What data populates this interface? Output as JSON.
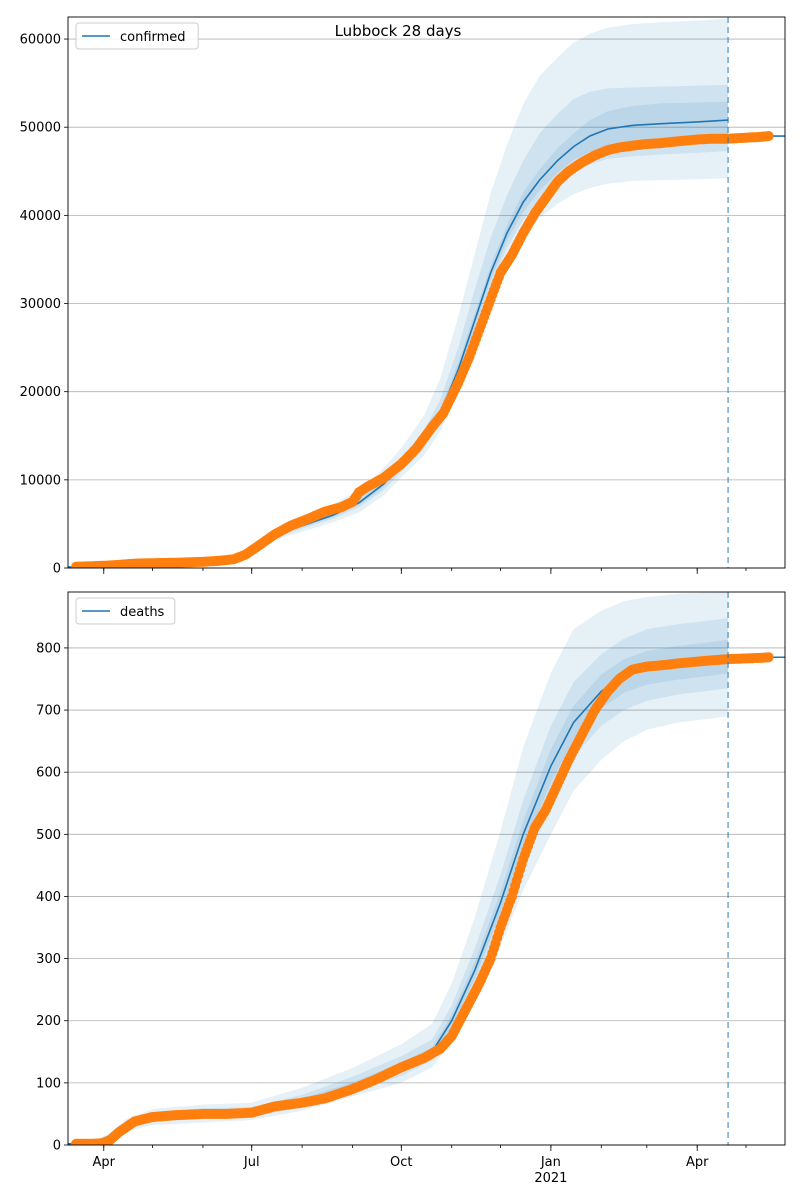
{
  "figure": {
    "suptitle": "Lubbock 28 days",
    "colors": {
      "model_line": "#1f77b4",
      "observed": "#ff7f0e",
      "band": "#1f77b4",
      "grid": "#b0b0b0",
      "vline": "#1f77b4"
    }
  },
  "x_ticks": [
    {
      "date": "2020-04-01",
      "label": "Apr"
    },
    {
      "date": "2020-07-01",
      "label": "Jul"
    },
    {
      "date": "2020-10-01",
      "label": "Oct"
    },
    {
      "date": "2021-01-01",
      "label": "Jan"
    },
    {
      "date": "2021-04-01",
      "label": "Apr"
    }
  ],
  "x_year_label": "2021",
  "chart_data": [
    {
      "type": "line",
      "legend": [
        "confirmed"
      ],
      "legend_position": "top-left",
      "grid": "horizontal",
      "xlim": [
        "2020-03-10",
        "2021-05-25"
      ],
      "ylim": [
        0,
        62500
      ],
      "yticks": [
        0,
        10000,
        20000,
        30000,
        40000,
        50000,
        60000
      ],
      "forecast_start": "2021-04-20",
      "series": [
        {
          "name": "confirmed",
          "kind": "model",
          "x": [
            "2020-03-10",
            "2020-04-15",
            "2020-05-20",
            "2020-06-20",
            "2020-07-01",
            "2020-07-15",
            "2020-08-01",
            "2020-08-20",
            "2020-09-05",
            "2020-09-20",
            "2020-10-01",
            "2020-10-15",
            "2020-10-25",
            "2020-11-05",
            "2020-11-15",
            "2020-11-25",
            "2020-12-05",
            "2020-12-15",
            "2020-12-25",
            "2021-01-05",
            "2021-01-15",
            "2021-01-25",
            "2021-02-05",
            "2021-02-20",
            "2021-03-10",
            "2021-04-01",
            "2021-04-20"
          ],
          "y": [
            100,
            300,
            600,
            1000,
            2300,
            3700,
            4800,
            6000,
            7400,
            9500,
            11600,
            14500,
            17500,
            22500,
            28000,
            33500,
            38000,
            41500,
            44000,
            46200,
            47800,
            49000,
            49800,
            50200,
            50400,
            50600,
            50800
          ],
          "bands": [
            {
              "lo": [
                80,
                250,
                500,
                850,
                2000,
                3200,
                4100,
                5200,
                6300,
                8200,
                10300,
                12800,
                15500,
                19800,
                25000,
                30500,
                34600,
                37500,
                39700,
                41300,
                42400,
                43100,
                43600,
                43900,
                44000,
                44100,
                44200
              ],
              "hi": [
                130,
                360,
                720,
                1200,
                2700,
                4300,
                5700,
                7200,
                8900,
                11300,
                13600,
                17300,
                21500,
                28500,
                35500,
                42500,
                48000,
                52600,
                55800,
                57900,
                59600,
                60600,
                61300,
                61700,
                61900,
                62100,
                62300
              ]
            },
            {
              "lo": [
                90,
                270,
                550,
                920,
                2150,
                3450,
                4450,
                5600,
                6900,
                8800,
                10900,
                13600,
                16500,
                21000,
                26500,
                32000,
                36300,
                39500,
                41800,
                43600,
                45000,
                45800,
                46400,
                46700,
                46900,
                47100,
                47300
              ],
              "hi": [
                115,
                330,
                660,
                1100,
                2500,
                4000,
                5200,
                6550,
                8000,
                10300,
                12400,
                15700,
                19100,
                25000,
                31500,
                37500,
                42300,
                46200,
                49300,
                51500,
                53200,
                54000,
                54400,
                54500,
                54600,
                54700,
                54800
              ]
            },
            {
              "lo": [
                95,
                285,
                575,
                960,
                2230,
                3580,
                4620,
                5800,
                7150,
                9150,
                11250,
                14050,
                17000,
                21700,
                27200,
                32700,
                37100,
                40400,
                42800,
                44800,
                46300,
                47200,
                47800,
                48100,
                48300,
                48500,
                48700
              ],
              "hi": [
                105,
                315,
                625,
                1040,
                2370,
                3820,
                4980,
                6200,
                7650,
                9850,
                11950,
                14950,
                18000,
                23300,
                28800,
                34300,
                38900,
                42600,
                45200,
                47600,
                49300,
                50800,
                51800,
                52400,
                52700,
                52800,
                52900
              ]
            }
          ]
        },
        {
          "name": "observed",
          "kind": "points",
          "x": [
            "2020-03-15",
            "2020-04-01",
            "2020-04-10",
            "2020-04-20",
            "2020-05-01",
            "2020-05-15",
            "2020-06-01",
            "2020-06-10",
            "2020-06-20",
            "2020-06-27",
            "2020-07-05",
            "2020-07-15",
            "2020-07-25",
            "2020-08-05",
            "2020-08-15",
            "2020-08-25",
            "2020-09-01",
            "2020-09-05",
            "2020-09-10",
            "2020-09-20",
            "2020-10-01",
            "2020-10-10",
            "2020-10-20",
            "2020-10-27",
            "2020-11-05",
            "2020-11-12",
            "2020-11-18",
            "2020-11-25",
            "2020-12-01",
            "2020-12-08",
            "2020-12-15",
            "2020-12-22",
            "2020-12-29",
            "2021-01-05",
            "2021-01-12",
            "2021-01-20",
            "2021-01-28",
            "2021-02-05",
            "2021-02-12",
            "2021-02-20",
            "2021-03-01",
            "2021-03-10",
            "2021-03-20",
            "2021-04-01",
            "2021-04-10",
            "2021-04-20",
            "2021-04-30",
            "2021-05-10",
            "2021-05-15"
          ],
          "y": [
            150,
            250,
            350,
            500,
            550,
            600,
            700,
            800,
            1000,
            1500,
            2500,
            3800,
            4800,
            5600,
            6400,
            6900,
            7500,
            8600,
            9200,
            10200,
            11800,
            13500,
            16000,
            17600,
            21000,
            24000,
            27000,
            30500,
            33500,
            35500,
            38000,
            40200,
            42000,
            43800,
            45000,
            46000,
            46800,
            47400,
            47700,
            47900,
            48100,
            48200,
            48400,
            48600,
            48700,
            48700,
            48800,
            48900,
            49000
          ]
        }
      ]
    },
    {
      "type": "line",
      "legend": [
        "deaths"
      ],
      "legend_position": "top-left",
      "grid": "horizontal",
      "xlim": [
        "2020-03-10",
        "2021-05-25"
      ],
      "ylim": [
        0,
        890
      ],
      "yticks": [
        0,
        100,
        200,
        300,
        400,
        500,
        600,
        700,
        800
      ],
      "forecast_start": "2021-04-20",
      "series": [
        {
          "name": "deaths",
          "kind": "model",
          "x": [
            "2020-03-10",
            "2020-03-25",
            "2020-04-05",
            "2020-04-15",
            "2020-05-01",
            "2020-06-01",
            "2020-07-01",
            "2020-08-01",
            "2020-09-01",
            "2020-10-01",
            "2020-10-20",
            "2020-11-01",
            "2020-11-15",
            "2020-12-01",
            "2020-12-15",
            "2021-01-01",
            "2021-01-15",
            "2021-02-01",
            "2021-02-15",
            "2021-03-01",
            "2021-03-20",
            "2021-04-05",
            "2021-04-20"
          ],
          "y": [
            2,
            3,
            15,
            32,
            45,
            50,
            52,
            70,
            95,
            125,
            150,
            200,
            280,
            390,
            500,
            610,
            680,
            730,
            755,
            768,
            775,
            780,
            785
          ],
          "bands": [
            {
              "lo": [
                1,
                2,
                10,
                22,
                32,
                36,
                40,
                55,
                78,
                100,
                125,
                165,
                230,
                320,
                410,
                500,
                570,
                620,
                650,
                668,
                680,
                685,
                690
              ],
              "hi": [
                3,
                5,
                20,
                42,
                58,
                65,
                68,
                92,
                124,
                162,
                195,
                260,
                365,
                505,
                640,
                760,
                830,
                860,
                875,
                882,
                887,
                889,
                890
              ]
            },
            {
              "lo": [
                1,
                2,
                12,
                26,
                37,
                42,
                45,
                61,
                85,
                111,
                136,
                181,
                254,
                355,
                455,
                555,
                625,
                675,
                700,
                715,
                725,
                730,
                735
              ],
              "hi": [
                3,
                4,
                18,
                38,
                53,
                59,
                61,
                81,
                110,
                143,
                170,
                225,
                315,
                435,
                555,
                675,
                745,
                790,
                815,
                830,
                838,
                843,
                848
              ]
            },
            {
              "lo": [
                1,
                3,
                13,
                29,
                41,
                46,
                48,
                65,
                89,
                117,
                143,
                190,
                267,
                373,
                478,
                583,
                653,
                703,
                728,
                741,
                749,
                754,
                759
              ],
              "hi": [
                3,
                4,
                17,
                35,
                49,
                54,
                56,
                75,
                101,
                133,
                157,
                210,
                293,
                407,
                522,
                637,
                707,
                757,
                782,
                795,
                803,
                808,
                813
              ]
            }
          ]
        },
        {
          "name": "observed",
          "kind": "points",
          "x": [
            "2020-03-15",
            "2020-03-25",
            "2020-04-01",
            "2020-04-05",
            "2020-04-10",
            "2020-04-20",
            "2020-05-01",
            "2020-05-15",
            "2020-06-01",
            "2020-06-15",
            "2020-07-01",
            "2020-07-15",
            "2020-08-01",
            "2020-08-15",
            "2020-09-01",
            "2020-09-15",
            "2020-10-01",
            "2020-10-15",
            "2020-10-25",
            "2020-11-01",
            "2020-11-10",
            "2020-11-18",
            "2020-11-25",
            "2020-12-01",
            "2020-12-08",
            "2020-12-15",
            "2020-12-22",
            "2020-12-29",
            "2021-01-05",
            "2021-01-12",
            "2021-01-20",
            "2021-01-28",
            "2021-02-05",
            "2021-02-12",
            "2021-02-20",
            "2021-03-01",
            "2021-03-10",
            "2021-03-20",
            "2021-04-01",
            "2021-04-10",
            "2021-04-20",
            "2021-04-30",
            "2021-05-10",
            "2021-05-15"
          ],
          "y": [
            2,
            2,
            3,
            8,
            20,
            38,
            45,
            48,
            50,
            50,
            52,
            62,
            68,
            75,
            90,
            105,
            125,
            140,
            155,
            175,
            220,
            260,
            300,
            350,
            400,
            460,
            510,
            540,
            580,
            620,
            660,
            700,
            730,
            750,
            765,
            770,
            772,
            775,
            778,
            780,
            782,
            783,
            784,
            785
          ]
        }
      ]
    }
  ]
}
